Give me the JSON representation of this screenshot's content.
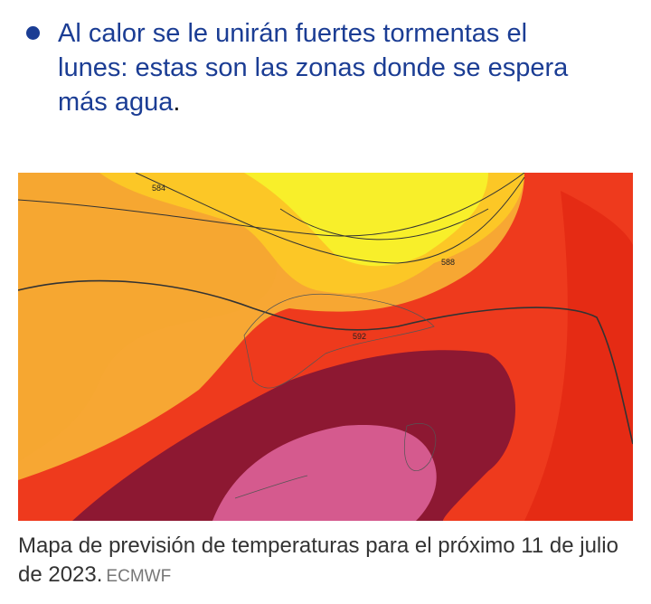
{
  "headline": {
    "text": "Al calor se le unirán fuertes tormentas el lunes: estas son las zonas donde se espera más agua",
    "punctuation": "."
  },
  "figure": {
    "contour_labels": [
      "584",
      "588",
      "592"
    ],
    "caption": "Mapa de previsión de temperaturas para el próximo 11 de julio de 2023.",
    "credit": "ECMWF"
  }
}
